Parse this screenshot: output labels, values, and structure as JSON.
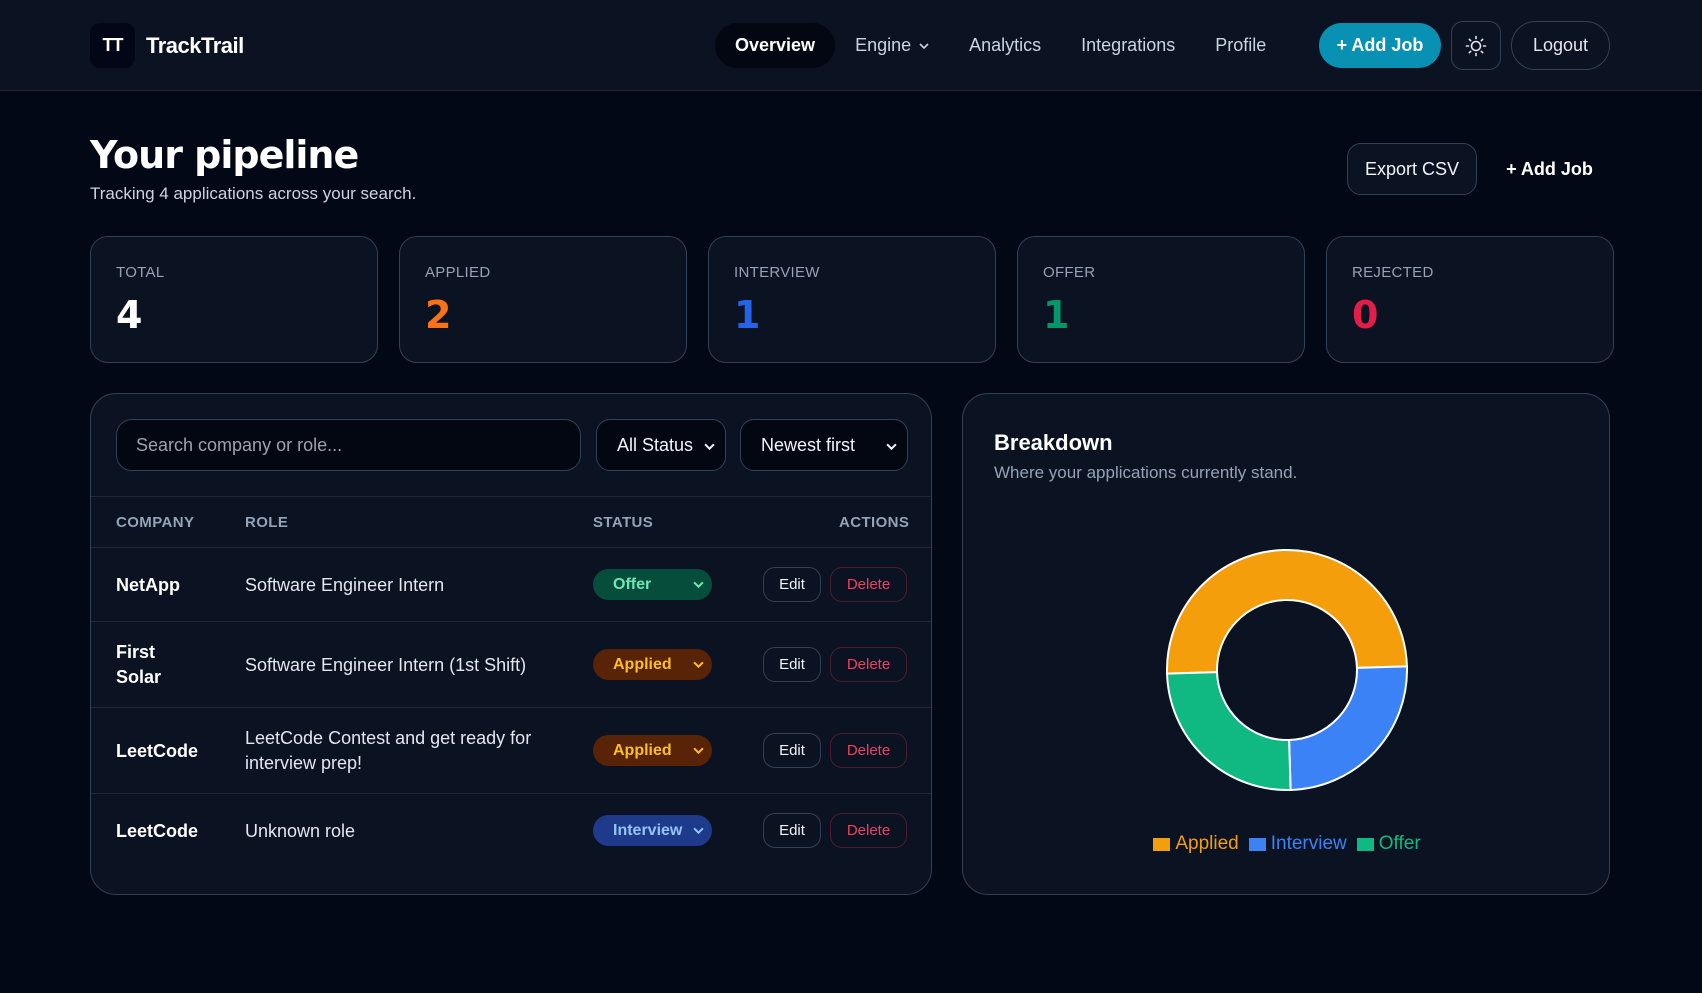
{
  "brand": {
    "logo": "TT",
    "name": "TrackTrail"
  },
  "nav": {
    "items": [
      {
        "label": "Overview",
        "active": true
      },
      {
        "label": "Engine",
        "dropdown": true
      },
      {
        "label": "Analytics"
      },
      {
        "label": "Integrations"
      },
      {
        "label": "Profile"
      }
    ],
    "add_job": "+ Add Job",
    "theme_icon": "sun-icon",
    "logout": "Logout"
  },
  "page": {
    "title": "Your pipeline",
    "subtitle": "Tracking 4 applications across your search.",
    "export_label": "Export CSV",
    "add_job_label": "+ Add Job"
  },
  "stats": [
    {
      "label": "TOTAL",
      "value": "4",
      "color": "#ffffff"
    },
    {
      "label": "APPLIED",
      "value": "2",
      "color": "#f97316"
    },
    {
      "label": "INTERVIEW",
      "value": "1",
      "color": "#2563eb"
    },
    {
      "label": "OFFER",
      "value": "1",
      "color": "#059669"
    },
    {
      "label": "REJECTED",
      "value": "0",
      "color": "#e11d48"
    }
  ],
  "filters": {
    "search_placeholder": "Search company or role...",
    "status_selected": "All Status",
    "sort_selected": "Newest first"
  },
  "table": {
    "headers": {
      "company": "COMPANY",
      "role": "ROLE",
      "status": "STATUS",
      "actions": "ACTIONS"
    },
    "edit_label": "Edit",
    "delete_label": "Delete",
    "rows": [
      {
        "company": "NetApp",
        "role": "Software Engineer Intern",
        "status": "Offer"
      },
      {
        "company": "First Solar",
        "role": "Software Engineer Intern (1st Shift)",
        "status": "Applied"
      },
      {
        "company": "LeetCode",
        "role": "LeetCode Contest and get ready for interview prep!",
        "status": "Applied"
      },
      {
        "company": "LeetCode",
        "role": "Unknown role",
        "status": "Interview"
      }
    ]
  },
  "status_colors": {
    "Offer": {
      "bg": "#064e3b",
      "fg": "#6ee7b7"
    },
    "Applied": {
      "bg": "#582307",
      "fg": "#fbbf24"
    },
    "Interview": {
      "bg": "#1e3a8a",
      "fg": "#93c5fd"
    }
  },
  "breakdown": {
    "title": "Breakdown",
    "subtitle": "Where your applications currently stand."
  },
  "chart_data": {
    "type": "pie",
    "donut": true,
    "categories": [
      "Applied",
      "Interview",
      "Offer"
    ],
    "values": [
      2,
      1,
      1
    ],
    "colors": [
      "#f59e0b",
      "#3b82f6",
      "#10b981"
    ],
    "legend": "bottom"
  }
}
